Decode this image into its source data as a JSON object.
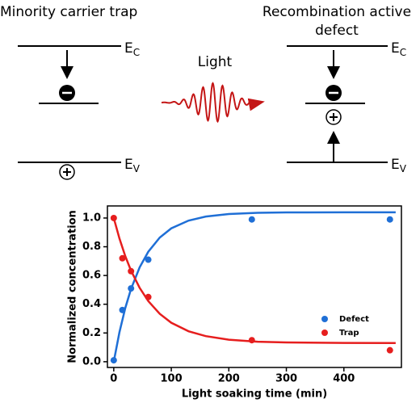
{
  "diagram": {
    "left_title": "Minority carrier trap",
    "right_title": [
      "Recombination active",
      "defect"
    ],
    "light": "Light",
    "ec": {
      "main": "E",
      "sub": "C"
    },
    "ev": {
      "main": "E",
      "sub": "V"
    }
  },
  "chart_data": {
    "type": "scatter",
    "xlabel": "Light soaking time (min)",
    "ylabel": "Normalized concentration",
    "xlim": [
      -11,
      500
    ],
    "ylim": [
      -0.04,
      1.084
    ],
    "xticks": [
      0,
      100,
      200,
      300,
      400
    ],
    "yticks": [
      {
        "value": 0,
        "label": "0.0"
      },
      {
        "value": 0.2,
        "label": "0.2"
      },
      {
        "value": 0.4,
        "label": "0.4"
      },
      {
        "value": 0.6,
        "label": "0.6"
      },
      {
        "value": 0.8,
        "label": "0.8"
      },
      {
        "value": 1,
        "label": "1.0"
      }
    ],
    "legend": "lower-right",
    "series": [
      {
        "name": "Defect",
        "color": "#1f6fd6",
        "x": [
          0,
          15,
          30,
          60,
          240,
          480
        ],
        "values": [
          0.01,
          0.36,
          0.51,
          0.71,
          0.99,
          0.99
        ]
      },
      {
        "name": "Trap",
        "color": "#e61e1e",
        "x": [
          0,
          15,
          30,
          60,
          240,
          480
        ],
        "values": [
          1.0,
          0.72,
          0.63,
          0.45,
          0.15,
          0.08
        ]
      }
    ],
    "fits": [
      {
        "color": "#1f6fd6",
        "x": [
          0,
          10,
          20,
          30,
          45,
          60,
          80,
          100,
          130,
          160,
          200,
          250,
          300,
          400,
          490
        ],
        "values": [
          0,
          0.207,
          0.373,
          0.506,
          0.657,
          0.765,
          0.864,
          0.928,
          0.982,
          1.01,
          1.028,
          1.036,
          1.039,
          1.04,
          1.04
        ]
      },
      {
        "color": "#e61e1e",
        "x": [
          0,
          10,
          20,
          30,
          45,
          60,
          80,
          100,
          130,
          160,
          200,
          250,
          300,
          400,
          490
        ],
        "values": [
          1.0,
          0.856,
          0.735,
          0.634,
          0.514,
          0.422,
          0.333,
          0.271,
          0.212,
          0.178,
          0.153,
          0.139,
          0.134,
          0.131,
          0.13
        ]
      }
    ]
  }
}
